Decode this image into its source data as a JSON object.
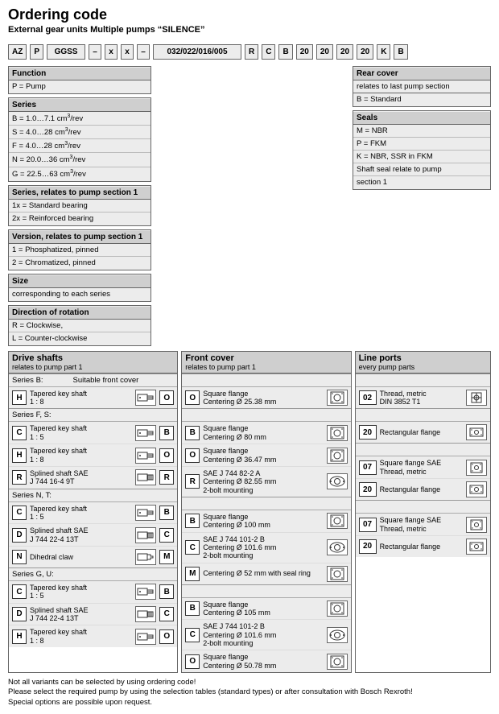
{
  "title": "Ordering code",
  "subtitle": "External gear units Multiple pumps “SILENCE”",
  "code_cells": [
    "AZ",
    "P",
    "GGSS",
    "–",
    "x",
    "x",
    "–",
    "032/022/016/005",
    "R",
    "C",
    "B",
    "20",
    "20",
    "20",
    "20",
    "K",
    "B"
  ],
  "function": {
    "header": "Function",
    "rows": [
      "P = Pump"
    ]
  },
  "series": {
    "header": "Series",
    "rows": [
      "B =  1.0…7.1 cm³/rev",
      "S =  4.0…28 cm³/rev",
      "F =  4.0…28 cm³/rev",
      "N = 20.0…36 cm³/rev",
      "G = 22.5…63 cm³/rev"
    ]
  },
  "series_p1": {
    "header": "Series, relates to pump section 1",
    "rows": [
      "1x = Standard bearing",
      "2x = Reinforced bearing"
    ]
  },
  "version_p1": {
    "header": "Version, relates to pump section 1",
    "rows": [
      "1 = Phosphatized, pinned",
      "2 = Chromatized, pinned"
    ]
  },
  "size": {
    "header": "Size",
    "rows": [
      "corresponding to each series"
    ]
  },
  "rotation": {
    "header": "Direction of rotation",
    "rows": [
      "R = Clockwise,",
      "L = Counter-clockwise"
    ]
  },
  "rear_cover": {
    "header": "Rear cover",
    "sub": "relates to last pump section",
    "rows": [
      "B = Standard"
    ]
  },
  "seals": {
    "header": "Seals",
    "rows": [
      "M = NBR",
      "P  = FKM",
      "K  = NBR, SSR in FKM",
      "       Shaft seal relate to pump",
      "       section 1"
    ]
  },
  "panels": {
    "drive": {
      "title": "Drive shafts",
      "sub": "relates to pump part 1"
    },
    "front": {
      "title": "Front cover",
      "sub": "relates to pump part 1"
    },
    "line": {
      "title": "Line ports",
      "sub": "every pump parts"
    }
  },
  "drive_groups": [
    {
      "label": "Series B:",
      "extra": "Suitable front cover",
      "rows": [
        {
          "k": "H",
          "t": "Tapered key shaft\n1 : 8",
          "icon": "shaft1",
          "cov": "O"
        }
      ]
    },
    {
      "label": "Series F, S:",
      "rows": [
        {
          "k": "C",
          "t": "Tapered key shaft\n1 : 5",
          "icon": "shaft1",
          "cov": "B"
        },
        {
          "k": "H",
          "t": "Tapered key shaft\n1 : 8",
          "icon": "shaft1",
          "cov": "O"
        },
        {
          "k": "R",
          "t": "Splined shaft SAE\nJ 744 16-4 9T",
          "icon": "spline",
          "cov": "R"
        }
      ]
    },
    {
      "label": "Series N, T:",
      "rows": [
        {
          "k": "C",
          "t": "Tapered key shaft\n1 : 5",
          "icon": "shaft1",
          "cov": "B"
        },
        {
          "k": "D",
          "t": "Splined shaft SAE\nJ 744 22-4 13T",
          "icon": "spline",
          "cov": "C"
        },
        {
          "k": "N",
          "t": "Dihedral claw",
          "icon": "claw",
          "cov": "M"
        }
      ]
    },
    {
      "label": "Series G, U:",
      "rows": [
        {
          "k": "C",
          "t": "Tapered key shaft\n1 : 5",
          "icon": "shaft1",
          "cov": "B"
        },
        {
          "k": "D",
          "t": "Splined shaft SAE\nJ 744 22-4 13T",
          "icon": "spline",
          "cov": "C"
        },
        {
          "k": "H",
          "t": "Tapered key shaft\n1 : 8",
          "icon": "shaft1",
          "cov": "O"
        }
      ]
    }
  ],
  "front_groups": [
    {
      "rows": [
        {
          "k": "O",
          "t": "Square flange\nCentering Ø 25.38 mm",
          "icon": "sqflange"
        }
      ]
    },
    {
      "rows": [
        {
          "k": "B",
          "t": "Square flange\nCentering Ø 80 mm",
          "icon": "sqflange"
        },
        {
          "k": "O",
          "t": "Square flange\nCentering Ø 36.47 mm",
          "icon": "sqflange"
        },
        {
          "k": "R",
          "t": "SAE J 744 82-2 A\nCentering Ø 82.55 mm\n2-bolt mounting",
          "icon": "sae2"
        }
      ]
    },
    {
      "rows": [
        {
          "k": "B",
          "t": "Square flange\nCentering Ø 100 mm",
          "icon": "sqflange"
        },
        {
          "k": "C",
          "t": "SAE J 744 101-2 B\nCentering Ø 101.6 mm\n2-bolt mounting",
          "icon": "sae2"
        },
        {
          "k": "M",
          "t": "Centering Ø 52 mm with seal ring",
          "icon": "sqflange"
        }
      ]
    },
    {
      "rows": [
        {
          "k": "B",
          "t": "Square flange\nCentering Ø 105 mm",
          "icon": "sqflange"
        },
        {
          "k": "C",
          "t": "SAE J 744 101-2 B\nCentering Ø 101.6 mm\n2-bolt mounting",
          "icon": "sae2"
        },
        {
          "k": "O",
          "t": "Square flange\nCentering Ø 50.78 mm",
          "icon": "sqflange"
        }
      ]
    }
  ],
  "line_groups": [
    {
      "rows": [
        {
          "k": "02",
          "t": "Thread, metric\nDIN 3852 T1",
          "icon": "thread"
        }
      ]
    },
    {
      "rows": [
        {
          "k": "20",
          "t": "Rectangular flange",
          "icon": "rect"
        }
      ]
    },
    {
      "rows": [
        {
          "k": "07",
          "t": "Square flange SAE\nThread, metric",
          "icon": "sqport"
        },
        {
          "k": "20",
          "t": "Rectangular flange",
          "icon": "rect"
        }
      ]
    },
    {
      "rows": [
        {
          "k": "07",
          "t": "Square flange SAE\nThread, metric",
          "icon": "sqport"
        },
        {
          "k": "20",
          "t": "Rectangular flange",
          "icon": "rect"
        }
      ]
    }
  ],
  "notes": [
    "Not all variants can be selected by using ordering code!",
    "Please select the required pump by using the selection tables (standard types) or after consultation with Bosch Rexroth!",
    "Special options are possible upon request."
  ]
}
